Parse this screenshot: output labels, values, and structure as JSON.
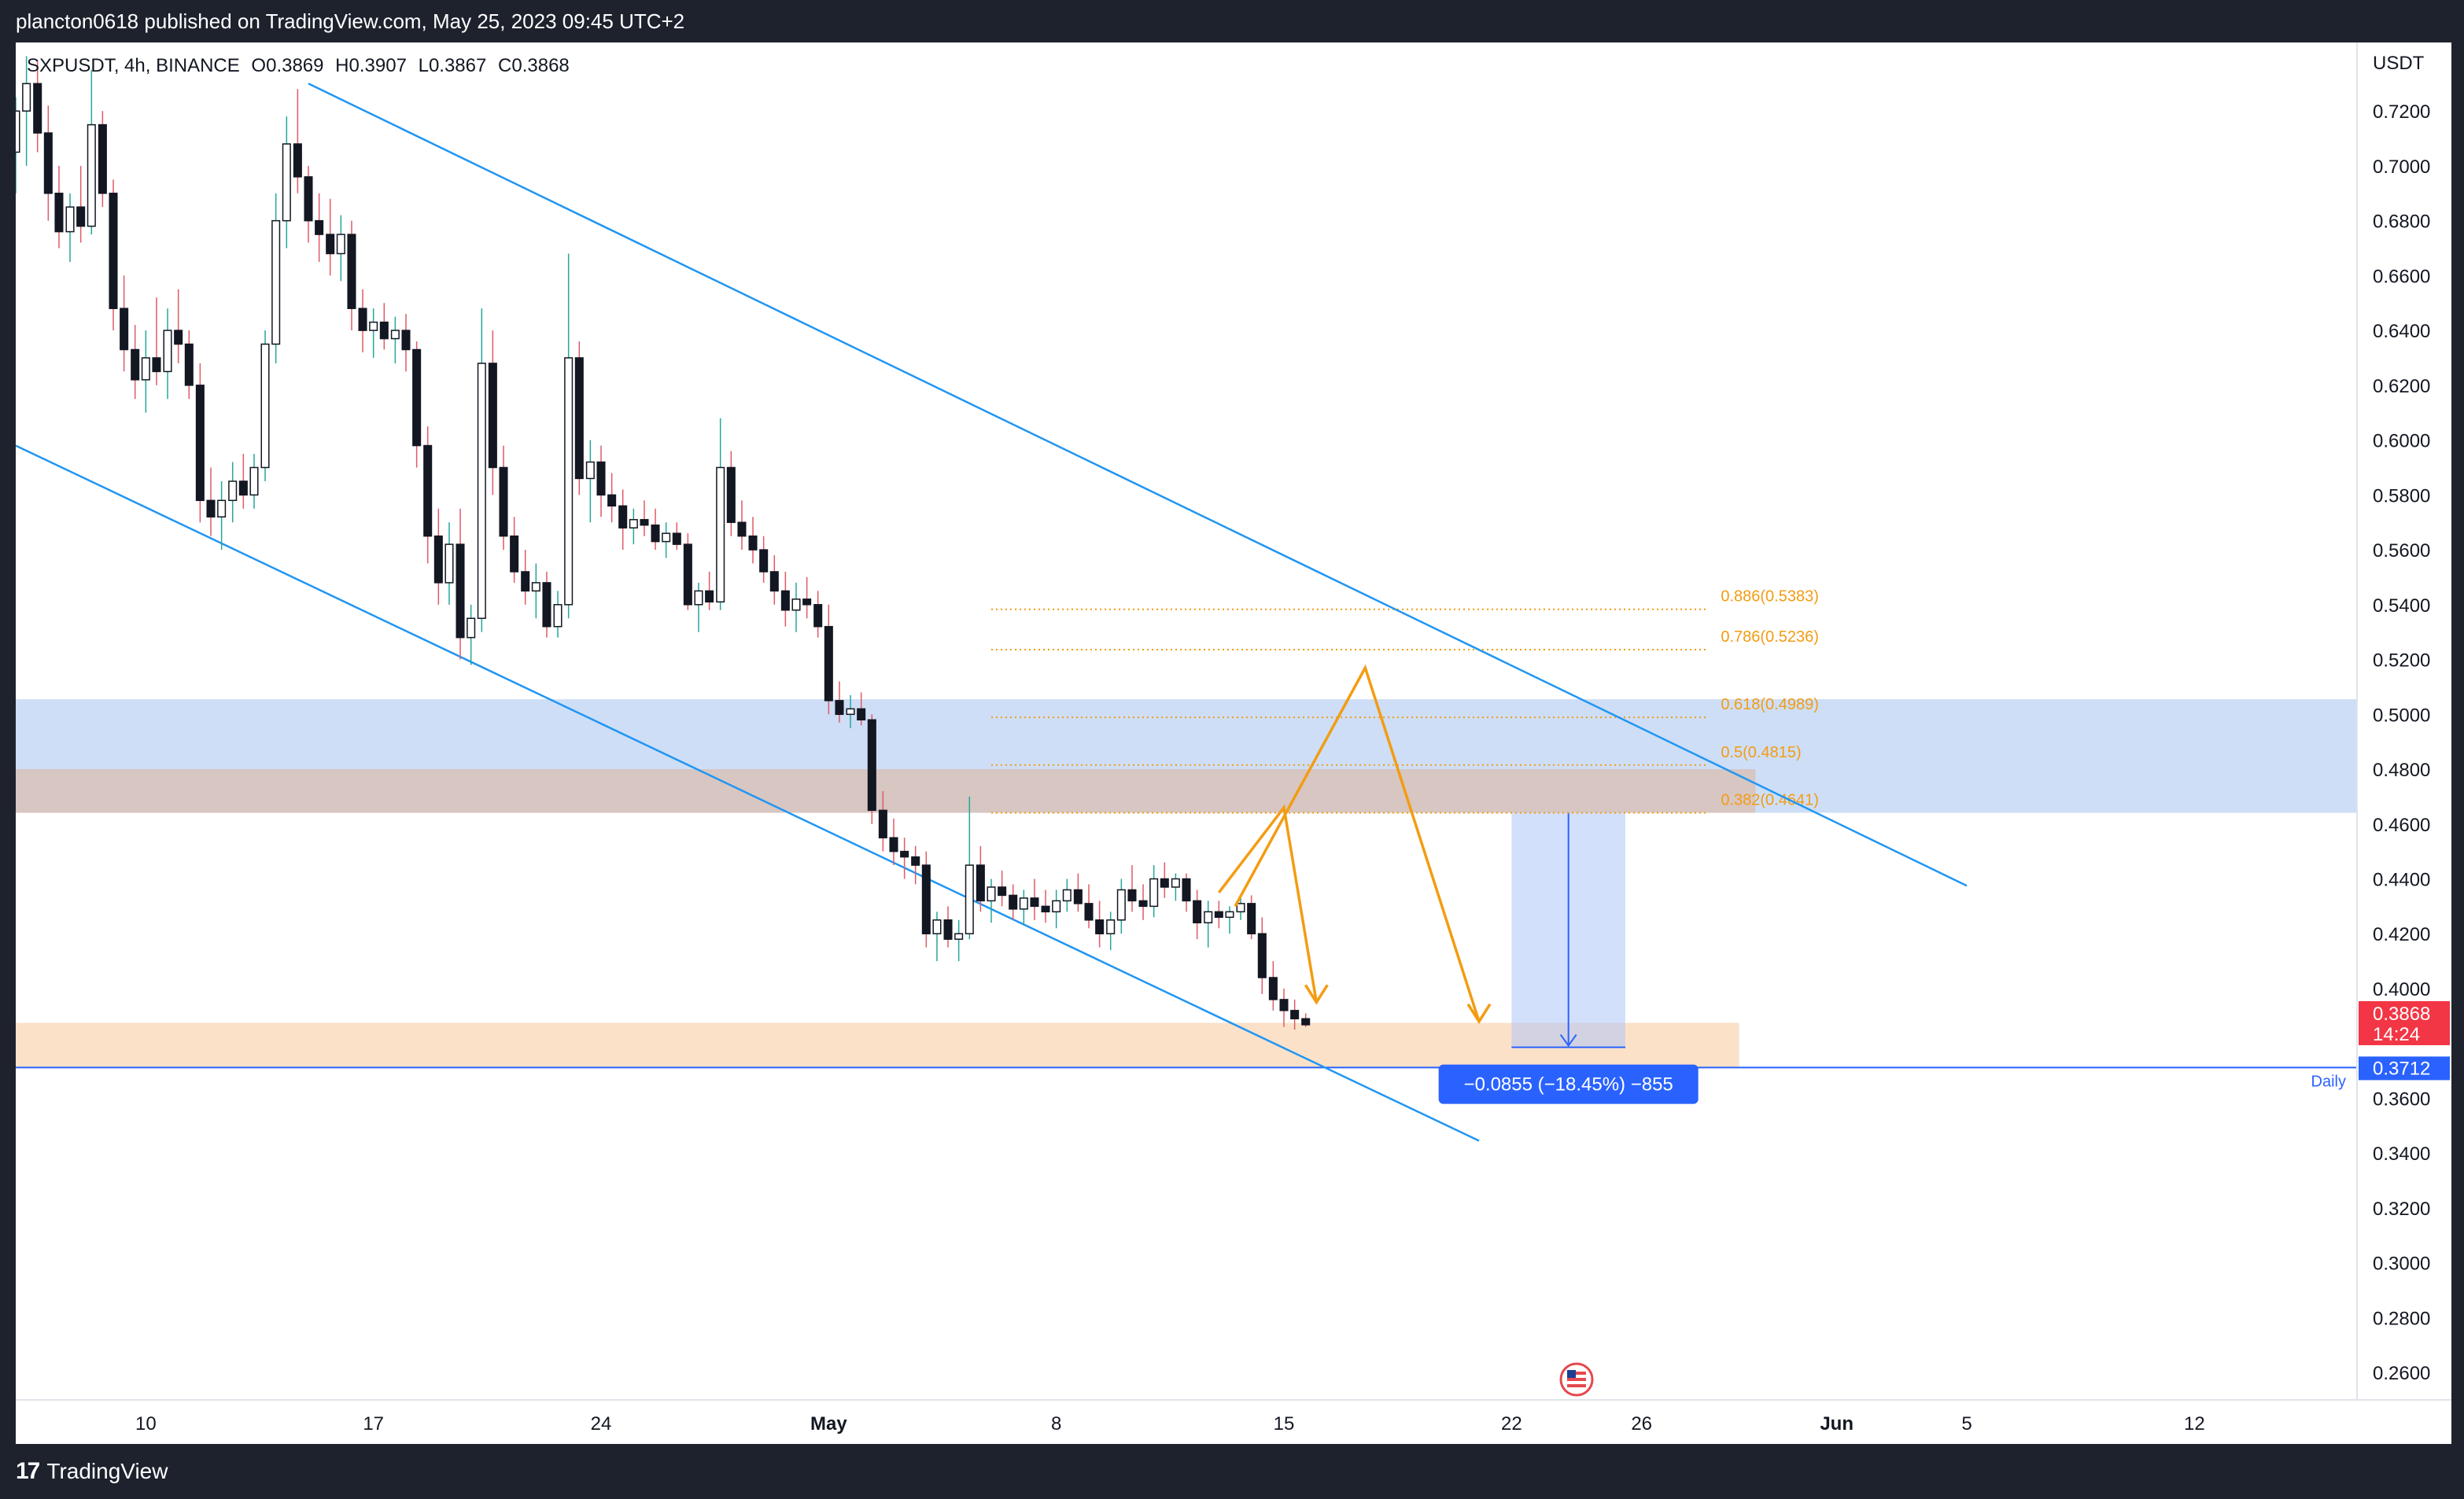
{
  "header": {
    "publish_text": "plancton0618 published on TradingView.com, May 25, 2023 09:45 UTC+2"
  },
  "legend": {
    "symbol": "SXPUSDT, 4h, BINANCE",
    "open": "O0.3869",
    "high": "H0.3907",
    "low": "L0.3867",
    "close": "C0.3868"
  },
  "footer": {
    "brand": "TradingView",
    "logo_mark": "17"
  },
  "chart_data": {
    "type": "candlestick",
    "symbol": "SXPUSDT",
    "interval": "4h",
    "exchange": "BINANCE",
    "currency": "USDT",
    "ylim": [
      0.25,
      0.745
    ],
    "y_ticks": [
      "0.7200",
      "0.7000",
      "0.6800",
      "0.6600",
      "0.6400",
      "0.6200",
      "0.6000",
      "0.5800",
      "0.5600",
      "0.5400",
      "0.5200",
      "0.5000",
      "0.4800",
      "0.4600",
      "0.4400",
      "0.4200",
      "0.4000",
      "0.3600",
      "0.3400",
      "0.3200",
      "0.3000",
      "0.2800",
      "0.2600"
    ],
    "y_tick_values": [
      0.72,
      0.7,
      0.68,
      0.66,
      0.64,
      0.62,
      0.6,
      0.58,
      0.56,
      0.54,
      0.52,
      0.5,
      0.48,
      0.46,
      0.44,
      0.42,
      0.4,
      0.36,
      0.34,
      0.32,
      0.3,
      0.28,
      0.26
    ],
    "x_ticks": [
      "10",
      "17",
      "24",
      "May",
      "8",
      "15",
      "22",
      "26",
      "Jun",
      "5",
      "12"
    ],
    "x_tick_days": [
      10,
      17,
      24,
      31,
      38,
      45,
      52,
      56,
      62,
      66,
      73
    ],
    "xlim_days": [
      6,
      78
    ],
    "last_price": "0.3868",
    "countdown": "14:24",
    "daily_level": "0.3712",
    "daily_label": "Daily",
    "fib_levels": [
      {
        "label": "0.886(0.5383)",
        "value": 0.5383
      },
      {
        "label": "0.786(0.5236)",
        "value": 0.5236
      },
      {
        "label": "0.618(0.4989)",
        "value": 0.4989
      },
      {
        "label": "0.5(0.4815)",
        "value": 0.4815
      },
      {
        "label": "0.382(0.4641)",
        "value": 0.4641
      }
    ],
    "measure_label": "−0.0855 (−18.45%) −855",
    "zones": [
      {
        "name": "resistance-blue",
        "from": 0.4641,
        "to": 0.5055,
        "x_from_day": 6,
        "x_to_day": 78,
        "color": "#c5d8f5"
      },
      {
        "name": "resistance-brown",
        "from": 0.4641,
        "to": 0.48,
        "x_from_day": 6,
        "x_to_day": 59.5,
        "color": "#d8c2b8"
      },
      {
        "name": "support-orange",
        "from": 0.3712,
        "to": 0.3875,
        "x_from_day": 6,
        "x_to_day": 59,
        "color": "#fbdcc0"
      }
    ],
    "channel_lines": [
      {
        "x1": 15.0,
        "y1": 0.73,
        "x2": 66.0,
        "y2": 0.4375
      },
      {
        "x1": 6.0,
        "y1": 0.598,
        "x2": 51.0,
        "y2": 0.3445
      }
    ],
    "projection_paths": [
      [
        [
          43.0,
          0.435
        ],
        [
          45.0,
          0.466
        ],
        [
          46.0,
          0.395
        ]
      ],
      [
        [
          43.5,
          0.43
        ],
        [
          47.5,
          0.517
        ],
        [
          51.0,
          0.388
        ]
      ]
    ],
    "candles": [
      [
        6.0,
        0.705,
        0.725,
        0.69,
        0.72
      ],
      [
        6.33,
        0.72,
        0.74,
        0.7,
        0.73
      ],
      [
        6.67,
        0.73,
        0.738,
        0.705,
        0.712
      ],
      [
        7.0,
        0.712,
        0.722,
        0.68,
        0.69
      ],
      [
        7.33,
        0.69,
        0.7,
        0.67,
        0.676
      ],
      [
        7.67,
        0.676,
        0.69,
        0.665,
        0.685
      ],
      [
        8.0,
        0.685,
        0.7,
        0.672,
        0.678
      ],
      [
        8.33,
        0.678,
        0.735,
        0.675,
        0.715
      ],
      [
        8.67,
        0.715,
        0.72,
        0.685,
        0.69
      ],
      [
        9.0,
        0.69,
        0.695,
        0.64,
        0.648
      ],
      [
        9.33,
        0.648,
        0.66,
        0.625,
        0.633
      ],
      [
        9.67,
        0.633,
        0.642,
        0.615,
        0.622
      ],
      [
        10.0,
        0.622,
        0.64,
        0.61,
        0.63
      ],
      [
        10.33,
        0.63,
        0.652,
        0.62,
        0.625
      ],
      [
        10.67,
        0.625,
        0.648,
        0.615,
        0.64
      ],
      [
        11.0,
        0.64,
        0.655,
        0.628,
        0.635
      ],
      [
        11.33,
        0.635,
        0.64,
        0.615,
        0.62
      ],
      [
        11.67,
        0.62,
        0.628,
        0.57,
        0.578
      ],
      [
        12.0,
        0.578,
        0.59,
        0.565,
        0.572
      ],
      [
        12.33,
        0.572,
        0.585,
        0.56,
        0.578
      ],
      [
        12.67,
        0.578,
        0.592,
        0.57,
        0.585
      ],
      [
        13.0,
        0.585,
        0.595,
        0.575,
        0.58
      ],
      [
        13.33,
        0.58,
        0.595,
        0.575,
        0.59
      ],
      [
        13.67,
        0.59,
        0.64,
        0.585,
        0.635
      ],
      [
        14.0,
        0.635,
        0.69,
        0.628,
        0.68
      ],
      [
        14.33,
        0.68,
        0.718,
        0.67,
        0.708
      ],
      [
        14.67,
        0.708,
        0.728,
        0.69,
        0.696
      ],
      [
        15.0,
        0.696,
        0.7,
        0.672,
        0.68
      ],
      [
        15.33,
        0.68,
        0.69,
        0.665,
        0.675
      ],
      [
        15.67,
        0.675,
        0.688,
        0.66,
        0.668
      ],
      [
        16.0,
        0.668,
        0.682,
        0.658,
        0.675
      ],
      [
        16.33,
        0.675,
        0.68,
        0.64,
        0.648
      ],
      [
        16.67,
        0.648,
        0.655,
        0.632,
        0.64
      ],
      [
        17.0,
        0.64,
        0.648,
        0.63,
        0.643
      ],
      [
        17.33,
        0.643,
        0.65,
        0.633,
        0.637
      ],
      [
        17.67,
        0.637,
        0.645,
        0.628,
        0.64
      ],
      [
        18.0,
        0.64,
        0.646,
        0.625,
        0.633
      ],
      [
        18.33,
        0.633,
        0.636,
        0.59,
        0.598
      ],
      [
        18.67,
        0.598,
        0.605,
        0.555,
        0.565
      ],
      [
        19.0,
        0.565,
        0.575,
        0.54,
        0.548
      ],
      [
        19.33,
        0.548,
        0.57,
        0.54,
        0.562
      ],
      [
        19.67,
        0.562,
        0.575,
        0.52,
        0.528
      ],
      [
        20.0,
        0.528,
        0.54,
        0.518,
        0.535
      ],
      [
        20.33,
        0.535,
        0.648,
        0.53,
        0.628
      ],
      [
        20.67,
        0.628,
        0.64,
        0.58,
        0.59
      ],
      [
        21.0,
        0.59,
        0.598,
        0.56,
        0.565
      ],
      [
        21.33,
        0.565,
        0.572,
        0.548,
        0.552
      ],
      [
        21.67,
        0.552,
        0.56,
        0.54,
        0.545
      ],
      [
        22.0,
        0.545,
        0.555,
        0.535,
        0.548
      ],
      [
        22.33,
        0.548,
        0.552,
        0.528,
        0.532
      ],
      [
        22.67,
        0.532,
        0.545,
        0.528,
        0.54
      ],
      [
        23.0,
        0.54,
        0.668,
        0.535,
        0.63
      ],
      [
        23.33,
        0.63,
        0.636,
        0.58,
        0.586
      ],
      [
        23.67,
        0.586,
        0.6,
        0.57,
        0.592
      ],
      [
        24.0,
        0.592,
        0.598,
        0.572,
        0.58
      ],
      [
        24.33,
        0.58,
        0.588,
        0.57,
        0.576
      ],
      [
        24.67,
        0.576,
        0.582,
        0.56,
        0.568
      ],
      [
        25.0,
        0.568,
        0.575,
        0.562,
        0.571
      ],
      [
        25.33,
        0.571,
        0.578,
        0.565,
        0.569
      ],
      [
        25.67,
        0.569,
        0.575,
        0.56,
        0.563
      ],
      [
        26.0,
        0.563,
        0.57,
        0.557,
        0.566
      ],
      [
        26.33,
        0.566,
        0.57,
        0.56,
        0.562
      ],
      [
        26.67,
        0.562,
        0.566,
        0.538,
        0.54
      ],
      [
        27.0,
        0.54,
        0.548,
        0.53,
        0.545
      ],
      [
        27.33,
        0.545,
        0.552,
        0.538,
        0.541
      ],
      [
        27.67,
        0.541,
        0.608,
        0.538,
        0.59
      ],
      [
        28.0,
        0.59,
        0.596,
        0.565,
        0.57
      ],
      [
        28.33,
        0.57,
        0.578,
        0.56,
        0.565
      ],
      [
        28.67,
        0.565,
        0.572,
        0.555,
        0.56
      ],
      [
        29.0,
        0.56,
        0.565,
        0.548,
        0.552
      ],
      [
        29.33,
        0.552,
        0.558,
        0.54,
        0.545
      ],
      [
        29.67,
        0.545,
        0.552,
        0.532,
        0.538
      ],
      [
        30.0,
        0.538,
        0.548,
        0.53,
        0.542
      ],
      [
        30.33,
        0.542,
        0.55,
        0.535,
        0.54
      ],
      [
        30.67,
        0.54,
        0.545,
        0.528,
        0.532
      ],
      [
        31.0,
        0.532,
        0.54,
        0.5,
        0.505
      ],
      [
        31.33,
        0.505,
        0.512,
        0.497,
        0.5
      ],
      [
        31.67,
        0.5,
        0.507,
        0.495,
        0.502
      ],
      [
        32.0,
        0.502,
        0.508,
        0.496,
        0.498
      ],
      [
        32.33,
        0.498,
        0.5,
        0.46,
        0.465
      ],
      [
        32.67,
        0.465,
        0.472,
        0.45,
        0.455
      ],
      [
        33.0,
        0.455,
        0.462,
        0.445,
        0.45
      ],
      [
        33.33,
        0.45,
        0.455,
        0.44,
        0.448
      ],
      [
        33.67,
        0.448,
        0.452,
        0.438,
        0.445
      ],
      [
        34.0,
        0.445,
        0.45,
        0.415,
        0.42
      ],
      [
        34.33,
        0.42,
        0.428,
        0.41,
        0.425
      ],
      [
        34.67,
        0.425,
        0.43,
        0.415,
        0.418
      ],
      [
        35.0,
        0.418,
        0.425,
        0.41,
        0.42
      ],
      [
        35.33,
        0.42,
        0.47,
        0.418,
        0.445
      ],
      [
        35.67,
        0.445,
        0.452,
        0.428,
        0.432
      ],
      [
        36.0,
        0.432,
        0.44,
        0.424,
        0.437
      ],
      [
        36.33,
        0.437,
        0.443,
        0.43,
        0.434
      ],
      [
        36.67,
        0.434,
        0.438,
        0.425,
        0.429
      ],
      [
        37.0,
        0.429,
        0.436,
        0.423,
        0.433
      ],
      [
        37.33,
        0.433,
        0.44,
        0.425,
        0.43
      ],
      [
        37.67,
        0.43,
        0.436,
        0.424,
        0.428
      ],
      [
        38.0,
        0.428,
        0.436,
        0.422,
        0.432
      ],
      [
        38.33,
        0.432,
        0.44,
        0.428,
        0.436
      ],
      [
        38.67,
        0.436,
        0.442,
        0.428,
        0.431
      ],
      [
        39.0,
        0.431,
        0.438,
        0.422,
        0.425
      ],
      [
        39.33,
        0.425,
        0.432,
        0.415,
        0.42
      ],
      [
        39.67,
        0.42,
        0.428,
        0.414,
        0.425
      ],
      [
        40.0,
        0.425,
        0.44,
        0.42,
        0.436
      ],
      [
        40.33,
        0.436,
        0.445,
        0.428,
        0.432
      ],
      [
        40.67,
        0.432,
        0.438,
        0.425,
        0.43
      ],
      [
        41.0,
        0.43,
        0.445,
        0.426,
        0.44
      ],
      [
        41.33,
        0.44,
        0.446,
        0.433,
        0.437
      ],
      [
        41.67,
        0.437,
        0.442,
        0.432,
        0.44
      ],
      [
        42.0,
        0.44,
        0.442,
        0.428,
        0.432
      ],
      [
        42.33,
        0.432,
        0.436,
        0.418,
        0.424
      ],
      [
        42.67,
        0.424,
        0.432,
        0.415,
        0.428
      ],
      [
        43.0,
        0.428,
        0.432,
        0.422,
        0.426
      ],
      [
        43.33,
        0.426,
        0.43,
        0.42,
        0.428
      ],
      [
        43.67,
        0.428,
        0.434,
        0.425,
        0.431
      ],
      [
        44.0,
        0.431,
        0.434,
        0.418,
        0.42
      ],
      [
        44.33,
        0.42,
        0.426,
        0.398,
        0.404
      ],
      [
        44.67,
        0.404,
        0.41,
        0.392,
        0.396
      ],
      [
        45.0,
        0.396,
        0.4,
        0.386,
        0.392
      ],
      [
        45.33,
        0.392,
        0.396,
        0.385,
        0.389
      ],
      [
        45.67,
        0.389,
        0.391,
        0.386,
        0.3868
      ]
    ]
  }
}
